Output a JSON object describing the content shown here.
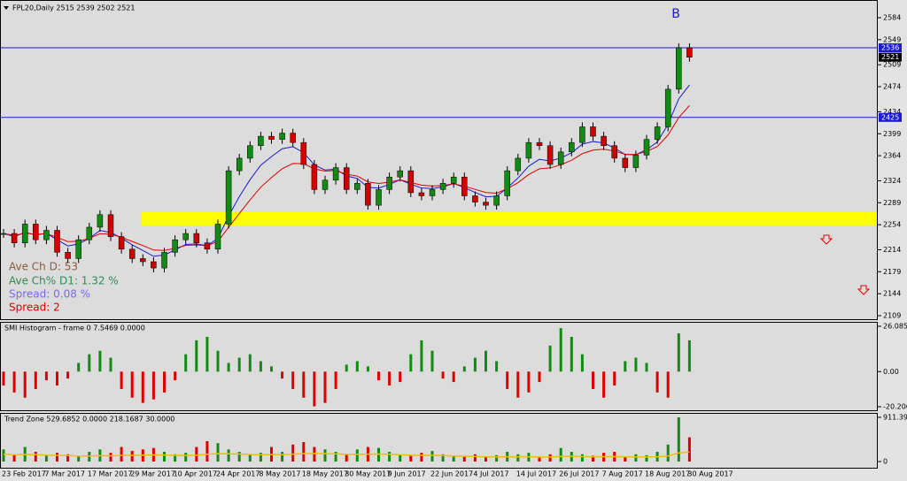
{
  "chart_data": [
    {
      "type": "candlestick",
      "title": "FPL20,Daily  2515 2539 2502 2521",
      "annotation": "B",
      "stats": [
        "Ave Ch D: 53",
        "Ave Ch% D1: 1.32 %",
        "Spread: 0.08 %",
        "Spread: 2"
      ],
      "categories": [
        "23 Feb 2017",
        null,
        null,
        null,
        "7 Mar 2017",
        null,
        null,
        null,
        "17 Mar 2017",
        null,
        null,
        null,
        "29 Mar 2017",
        null,
        null,
        null,
        "10 Apr 2017",
        null,
        null,
        null,
        "24 Apr 2017",
        null,
        null,
        null,
        "8 May 2017",
        null,
        null,
        null,
        "18 May 2017",
        null,
        null,
        null,
        "30 May 2017",
        null,
        null,
        null,
        "9 Jun 2017",
        null,
        null,
        null,
        "22 Jun 2017",
        null,
        null,
        null,
        "4 Jul 2017",
        null,
        null,
        null,
        "14 Jul 2017",
        null,
        null,
        null,
        "26 Jul 2017",
        null,
        null,
        null,
        "7 Aug 2017",
        null,
        null,
        null,
        "18 Aug 2017",
        null,
        null,
        null,
        "30 Aug 2017"
      ],
      "values": [
        2240,
        2225,
        2255,
        2230,
        2245,
        2210,
        2200,
        2230,
        2250,
        2270,
        2235,
        2215,
        2200,
        2195,
        2185,
        2210,
        2230,
        2240,
        2225,
        2215,
        2255,
        2340,
        2360,
        2380,
        2395,
        2390,
        2400,
        2385,
        2350,
        2310,
        2325,
        2345,
        2310,
        2320,
        2285,
        2310,
        2330,
        2340,
        2305,
        2300,
        2310,
        2320,
        2330,
        2300,
        2290,
        2285,
        2300,
        2340,
        2360,
        2385,
        2380,
        2350,
        2370,
        2385,
        2410,
        2395,
        2380,
        2360,
        2345,
        2365,
        2390,
        2410,
        2470,
        2536,
        2521
      ],
      "up_color": "#138a13",
      "down_color": "#d20000",
      "ylim": [
        2109,
        2584
      ],
      "yticks": [
        2109,
        2144,
        2179,
        2214,
        2254,
        2289,
        2324,
        2364,
        2399,
        2434,
        2474,
        2509,
        2549,
        2584
      ],
      "hlines": [
        2536,
        2425
      ],
      "last_price": 2521,
      "zone": [
        2253,
        2274
      ]
    },
    {
      "type": "histogram",
      "title": "SMI Histogram - frame 0 7.5469 0.0000",
      "values": [
        -8,
        -12,
        -15,
        -10,
        -5,
        -8,
        -4,
        5,
        10,
        12,
        8,
        -10,
        -15,
        -18,
        -16,
        -12,
        -5,
        10,
        18,
        20,
        12,
        5,
        8,
        10,
        6,
        3,
        -4,
        -10,
        -15,
        -20,
        -18,
        -10,
        4,
        6,
        3,
        -5,
        -8,
        -6,
        10,
        18,
        12,
        -4,
        -6,
        3,
        8,
        12,
        6,
        -10,
        -15,
        -12,
        -6,
        15,
        25,
        20,
        10,
        -10,
        -15,
        -8,
        6,
        8,
        5,
        -12,
        -15,
        22,
        18
      ],
      "ylim": [
        -20.206,
        26.0852
      ],
      "yticks": [
        -20.206,
        {
          "value": 0,
          "label": "0.00"
        },
        26.0852
      ]
    },
    {
      "type": "bar",
      "title": "Trend Zone 529.6852 0.0000 218.1687 30.0000",
      "values": [
        250,
        150,
        300,
        200,
        120,
        180,
        150,
        100,
        200,
        250,
        180,
        300,
        220,
        250,
        280,
        200,
        150,
        180,
        300,
        420,
        380,
        250,
        200,
        150,
        180,
        300,
        200,
        350,
        400,
        300,
        250,
        200,
        150,
        250,
        300,
        280,
        200,
        150,
        120,
        180,
        220,
        150,
        100,
        120,
        150,
        100,
        130,
        200,
        150,
        180,
        100,
        150,
        280,
        200,
        150,
        120,
        180,
        200,
        100,
        150,
        130,
        200,
        350,
        911,
        500
      ],
      "ylim": [
        0,
        911.3943
      ],
      "yticks": [
        0,
        911.3943
      ]
    }
  ]
}
